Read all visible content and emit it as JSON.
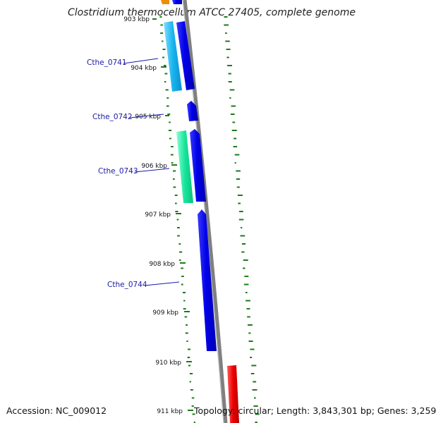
{
  "title": "Clostridium thermocellum ATCC 27405, complete genome",
  "accession_label": "Accession: NC_009012",
  "summary_label": "Topology: circular; Length: 3,843,301 bp; Genes: 3,259",
  "ticks": [
    "903 kbp",
    "904 kbp",
    "905 kbp",
    "906 kbp",
    "907 kbp",
    "908 kbp",
    "909 kbp",
    "910 kbp",
    "911 kbp"
  ],
  "genes": [
    "Cthe_0741",
    "Cthe_0742",
    "Cthe_0743",
    "Cthe_0744"
  ],
  "colors": {
    "forward_gene": "#0000ee",
    "reverse_gene_1": "#1ab6f0",
    "reverse_gene_2": "#17e6a0",
    "highlight_gene": "#ee0000",
    "top_gene": "#f08c00",
    "backbone": "#808080",
    "gc_ticks": "#1e7a1e",
    "gene_label": "#1a1aa8"
  }
}
